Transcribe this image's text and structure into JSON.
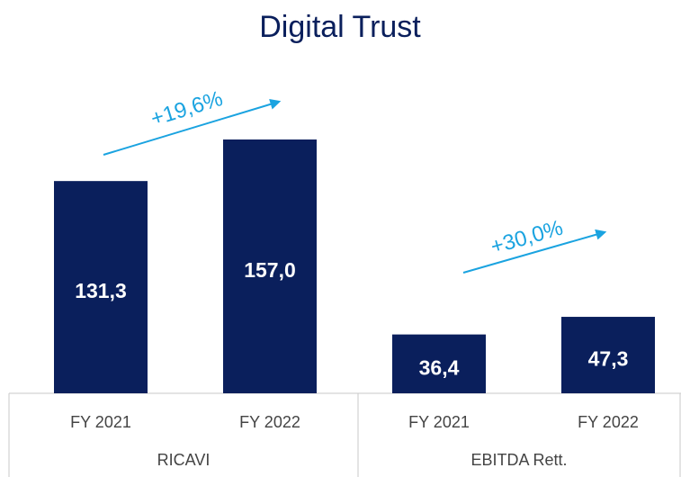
{
  "chart_data": {
    "type": "bar",
    "title": "Digital Trust",
    "color": "#0a1f5c",
    "annotation_color": "#1aa3e0",
    "groups": [
      {
        "label": "RICAVI",
        "categories": [
          "FY 2021",
          "FY 2022"
        ],
        "values": [
          131.3,
          157.0
        ],
        "value_labels": [
          "131,3",
          "157,0"
        ],
        "annotation": "+19,6%"
      },
      {
        "label": "EBITDA Rett.",
        "categories": [
          "FY 2021",
          "FY 2022"
        ],
        "values": [
          36.4,
          47.3
        ],
        "value_labels": [
          "36,4",
          "47,3"
        ],
        "annotation": "+30,0%"
      }
    ]
  }
}
